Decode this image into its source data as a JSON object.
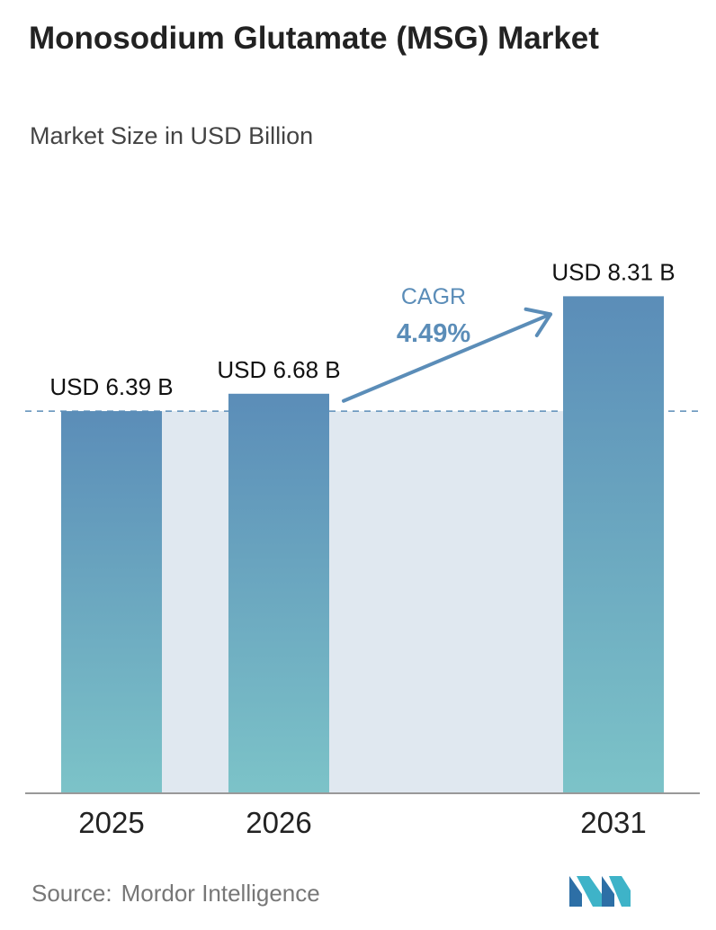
{
  "header": {
    "title": "Monosodium Glutamate (MSG) Market",
    "subtitle": "Market Size in USD Billion"
  },
  "chart_data": {
    "type": "bar",
    "title": "Monosodium Glutamate (MSG) Market",
    "subtitle": "Market Size in USD Billion",
    "categories": [
      "2025",
      "2026",
      "2031"
    ],
    "values": [
      6.39,
      6.68,
      8.31
    ],
    "data_labels": [
      "USD 6.39 B",
      "USD 6.68 B",
      "USD 8.31 B"
    ],
    "unit": "USD Billion",
    "ylim": [
      0,
      10
    ],
    "grid": false,
    "reference_line_value": 6.39,
    "cagr": {
      "label": "CAGR",
      "value": "4.49%"
    },
    "colors": {
      "bar_top": "#5b8db8",
      "bar_bottom": "#7cc3c8",
      "band": "#e0e8f0",
      "arrow": "#5b8db8",
      "cagr_label": "#5b8db8",
      "reference_line": "#5b8db8",
      "axis": "#999999"
    }
  },
  "footer": {
    "source_label": "Source:",
    "source_name": "Mordor Intelligence",
    "logo": "mordor-intelligence-logo"
  }
}
